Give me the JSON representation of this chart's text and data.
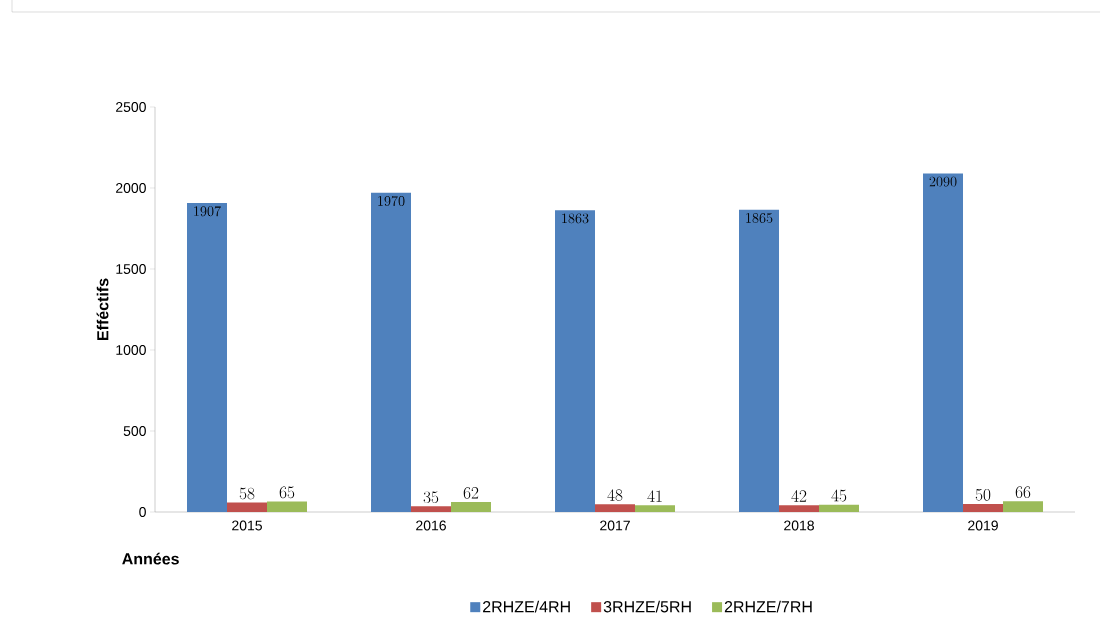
{
  "chart_data": {
    "type": "bar",
    "xlabel": "Années",
    "ylabel": "Efféctifs",
    "categories": [
      "2015",
      "2016",
      "2017",
      "2018",
      "2019"
    ],
    "series": [
      {
        "name": "2RHZE/4RH",
        "color": "#4f81bd",
        "values": [
          1907,
          1970,
          1863,
          1865,
          2090
        ]
      },
      {
        "name": "3RHZE/5RH",
        "color": "#c0504d",
        "values": [
          58,
          35,
          48,
          42,
          50
        ]
      },
      {
        "name": "2RHZE/7RH",
        "color": "#9bbb59",
        "values": [
          65,
          62,
          41,
          45,
          66
        ]
      }
    ],
    "ylim": [
      0,
      2500
    ],
    "yticks": [
      0,
      500,
      1000,
      1500,
      2000,
      2500
    ],
    "data_labels": true,
    "legend": "bottom",
    "grid": false
  }
}
